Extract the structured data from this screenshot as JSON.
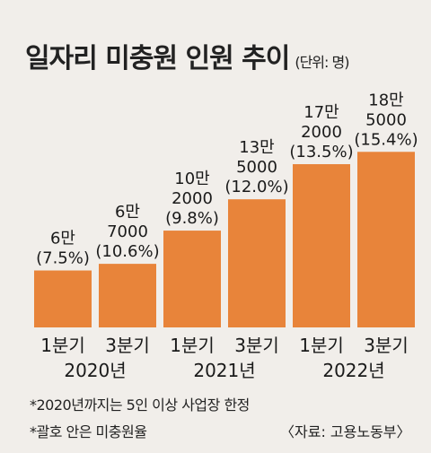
{
  "header": {
    "title": "일자리 미충원 인원 추이",
    "unit": "(단위: 명)"
  },
  "colors": {
    "bar": "#e8843a",
    "background": "#f1eeea"
  },
  "chart_data": {
    "type": "bar",
    "title": "일자리 미충원 인원 추이",
    "unit": "(단위: 명)",
    "categories": [
      "1분기",
      "3분기",
      "1분기",
      "3분기",
      "1분기",
      "3분기"
    ],
    "years": [
      "2020년",
      "2021년",
      "2022년"
    ],
    "values": [
      60000,
      67000,
      102000,
      135000,
      172000,
      185000
    ],
    "value_labels": [
      [
        "6만"
      ],
      [
        "6만",
        "7000"
      ],
      [
        "10만",
        "2000"
      ],
      [
        "13만",
        "5000"
      ],
      [
        "17만",
        "2000"
      ],
      [
        "18만",
        "5000"
      ]
    ],
    "rates": [
      "(7.5%)",
      "(10.6%)",
      "(9.8%)",
      "(12.0%)",
      "(13.5%)",
      "(15.4%)"
    ],
    "ylim": [
      0,
      200000
    ],
    "grid": false
  },
  "notes": [
    "*2020년까지는 5인 이상 사업장 한정",
    "*괄호 안은 미충원율"
  ],
  "source": "〈자료: 고용노동부〉"
}
